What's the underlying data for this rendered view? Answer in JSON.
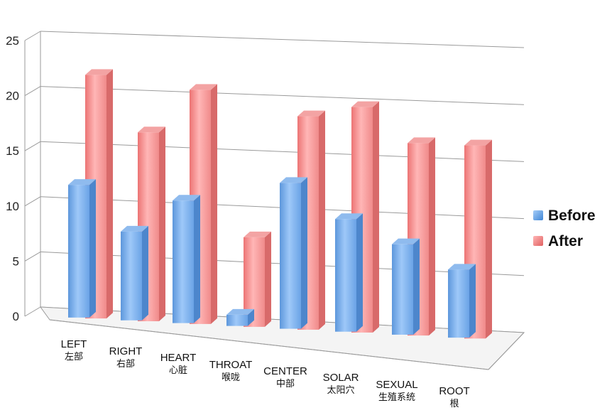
{
  "chart_data": {
    "type": "bar",
    "categories": [
      "LEFT",
      "RIGHT",
      "HEART",
      "THROAT",
      "CENTER",
      "SOLAR",
      "SEXUAL",
      "ROOT"
    ],
    "category_sublabels": [
      "左部",
      "右部",
      "心脏",
      "喉咙",
      "中部",
      "太阳穴",
      "生殖系统",
      "根"
    ],
    "series": [
      {
        "name": "Before",
        "values": [
          12,
          8,
          11,
          1,
          13,
          10,
          8,
          6
        ],
        "color": "#6aa8ec"
      },
      {
        "name": "After",
        "values": [
          22,
          17,
          21,
          8,
          19,
          20,
          17,
          17
        ],
        "color": "#f08888"
      }
    ],
    "yticks": [
      0,
      5,
      10,
      15,
      20,
      25
    ],
    "ylim": [
      0,
      25
    ],
    "grid": true,
    "legend": "right",
    "title": "",
    "xlabel": "",
    "ylabel": ""
  }
}
